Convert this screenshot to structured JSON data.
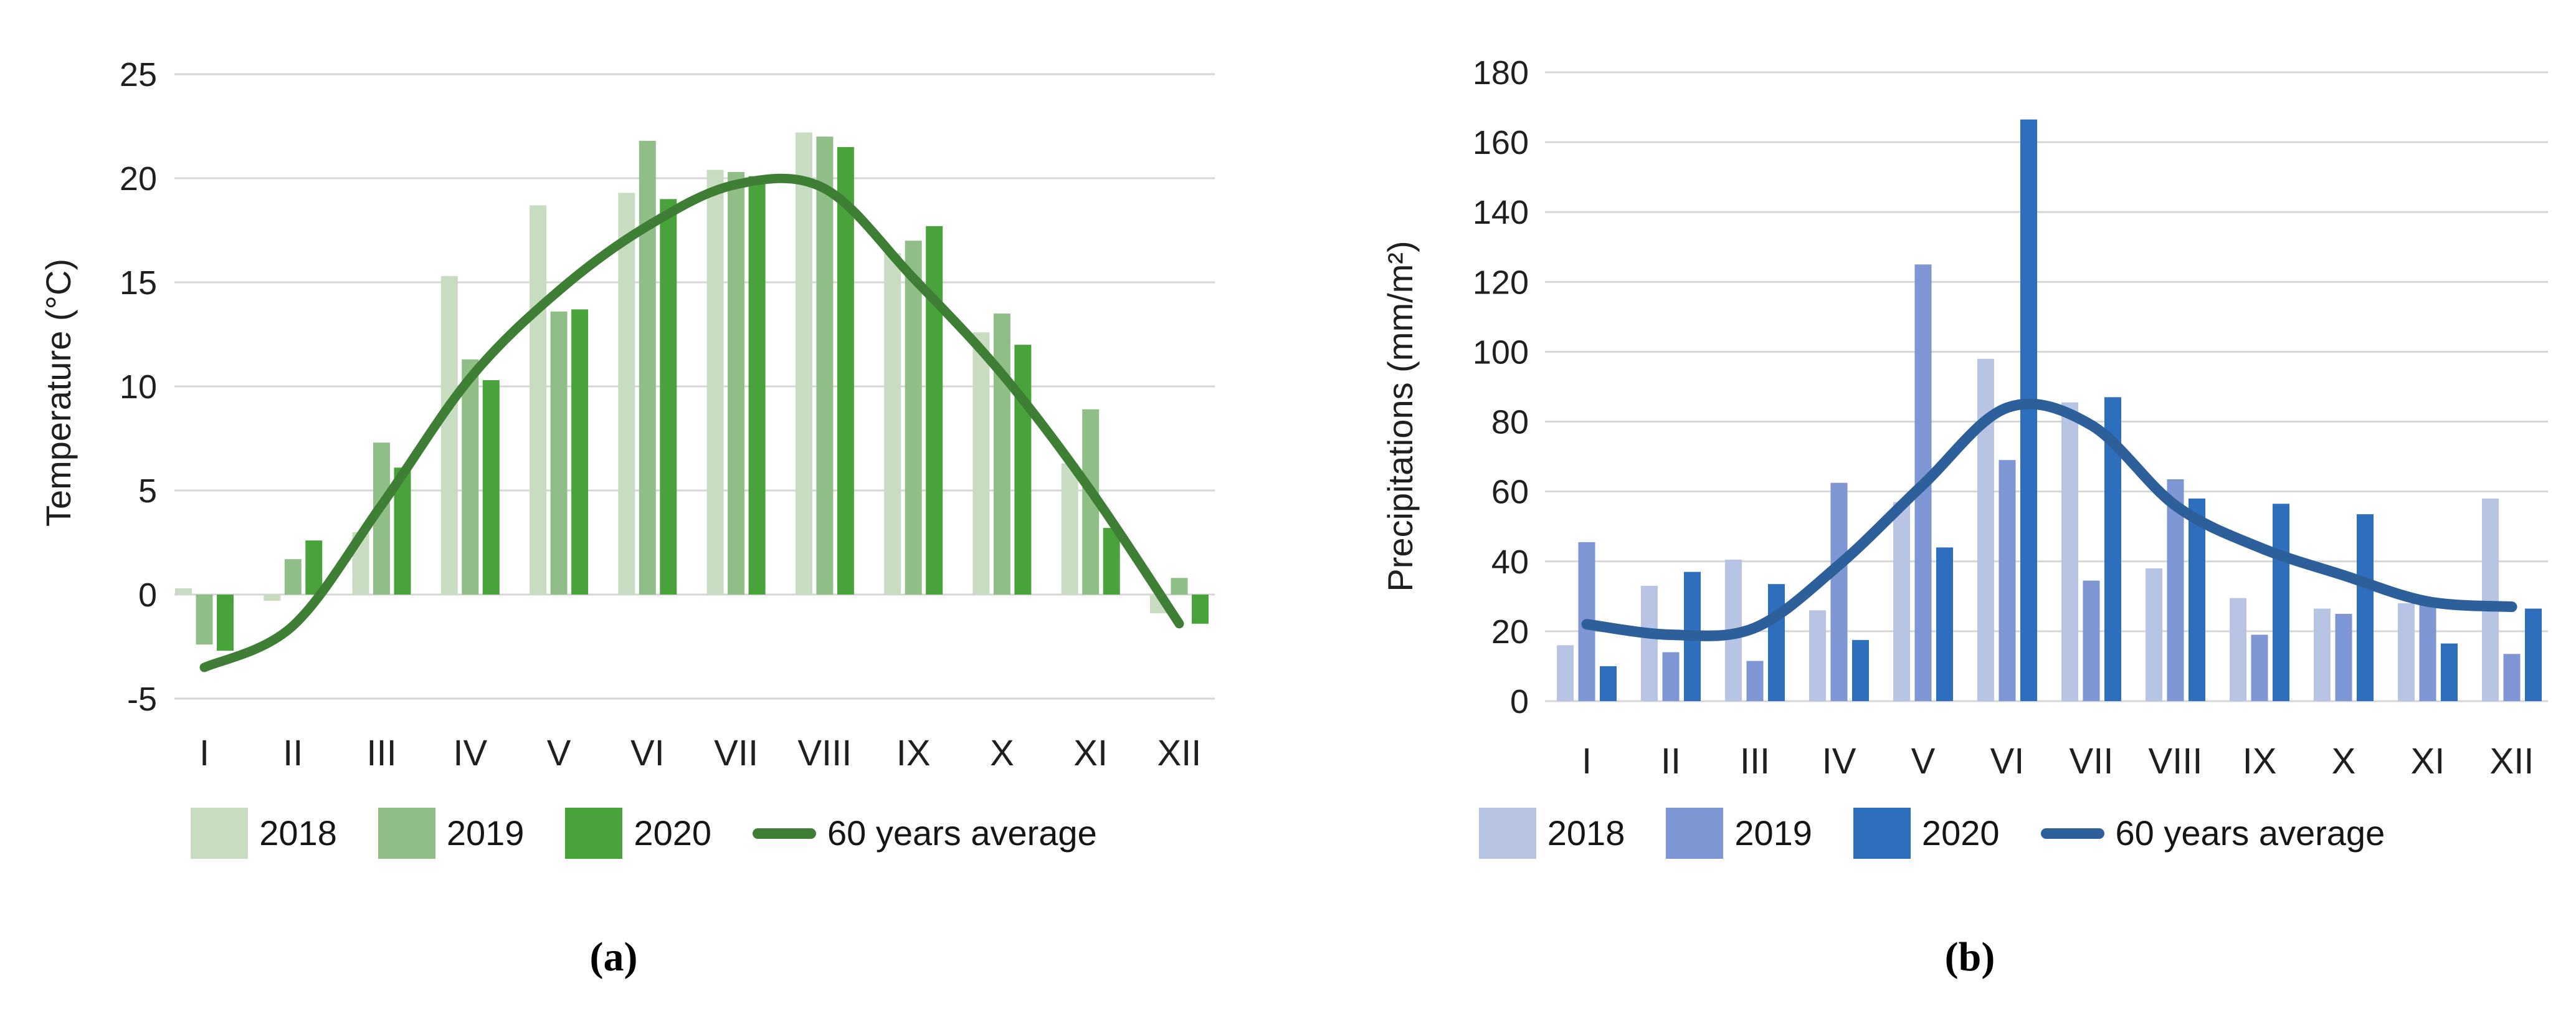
{
  "figure": {
    "background": "#ffffff",
    "gridline_color": "#d6d6d6",
    "text_color": "#1f1f1f",
    "captions": {
      "a": "(a)",
      "b": "(b)"
    }
  },
  "chart_data": [
    {
      "type": "bar",
      "title": "(a)",
      "xlabel": "",
      "ylabel": "Temperature (°C)",
      "categories": [
        "I",
        "II",
        "III",
        "IV",
        "V",
        "VI",
        "VII",
        "VIII",
        "IX",
        "X",
        "XI",
        "XII"
      ],
      "ylim": [
        -5,
        25
      ],
      "ytick_step": 5,
      "yticks": [
        -5,
        0,
        5,
        10,
        15,
        20,
        25
      ],
      "grid": true,
      "legend_position": "bottom",
      "series": [
        {
          "name": "2018",
          "type": "bar",
          "color": "#c8dcc2",
          "values": [
            0.3,
            -0.3,
            3.0,
            15.3,
            18.7,
            19.3,
            20.4,
            22.2,
            16.4,
            12.6,
            6.3,
            -0.9
          ]
        },
        {
          "name": "2019",
          "type": "bar",
          "color": "#8fbf86",
          "values": [
            -2.4,
            1.7,
            7.3,
            11.3,
            13.6,
            21.8,
            20.3,
            22.0,
            17.0,
            13.5,
            8.9,
            0.8
          ]
        },
        {
          "name": "2020",
          "type": "bar",
          "color": "#48a43a",
          "values": [
            -2.7,
            2.6,
            6.1,
            10.3,
            13.7,
            19.0,
            20.1,
            21.5,
            17.7,
            12.0,
            3.2,
            -1.4
          ]
        },
        {
          "name": "60 years average",
          "type": "line",
          "color": "#3f7f35",
          "values": [
            -3.5,
            -1.5,
            4.3,
            10.4,
            14.6,
            17.7,
            19.7,
            19.5,
            15.2,
            10.6,
            5.0,
            -1.4
          ]
        }
      ]
    },
    {
      "type": "bar",
      "title": "(b)",
      "xlabel": "",
      "ylabel": "Precipitations (mm/m²)",
      "categories": [
        "I",
        "II",
        "III",
        "IV",
        "V",
        "VI",
        "VII",
        "VIII",
        "IX",
        "X",
        "XI",
        "XII"
      ],
      "ylim": [
        0,
        180
      ],
      "ytick_step": 20,
      "yticks": [
        0,
        20,
        40,
        60,
        80,
        100,
        120,
        140,
        160,
        180
      ],
      "grid": true,
      "legend_position": "bottom",
      "series": [
        {
          "name": "2018",
          "type": "bar",
          "color": "#b7c4e3",
          "values": [
            16,
            33,
            40.5,
            26,
            57,
            98,
            85.5,
            38,
            29.5,
            26.5,
            28,
            58
          ]
        },
        {
          "name": "2019",
          "type": "bar",
          "color": "#7e96d3",
          "values": [
            45.5,
            14,
            11.5,
            62.5,
            125,
            69,
            34.5,
            63.5,
            19,
            25,
            27.5,
            13.5
          ]
        },
        {
          "name": "2020",
          "type": "bar",
          "color": "#2e6fbd",
          "values": [
            10,
            37,
            33.5,
            17.5,
            44,
            166.5,
            87,
            58,
            56.5,
            53.5,
            16.5,
            26.5
          ]
        },
        {
          "name": "60 years average",
          "type": "line",
          "color": "#2d5f9b",
          "values": [
            22,
            19,
            21,
            39,
            62,
            84,
            79,
            56,
            44,
            36,
            28.5,
            27
          ]
        }
      ]
    }
  ]
}
